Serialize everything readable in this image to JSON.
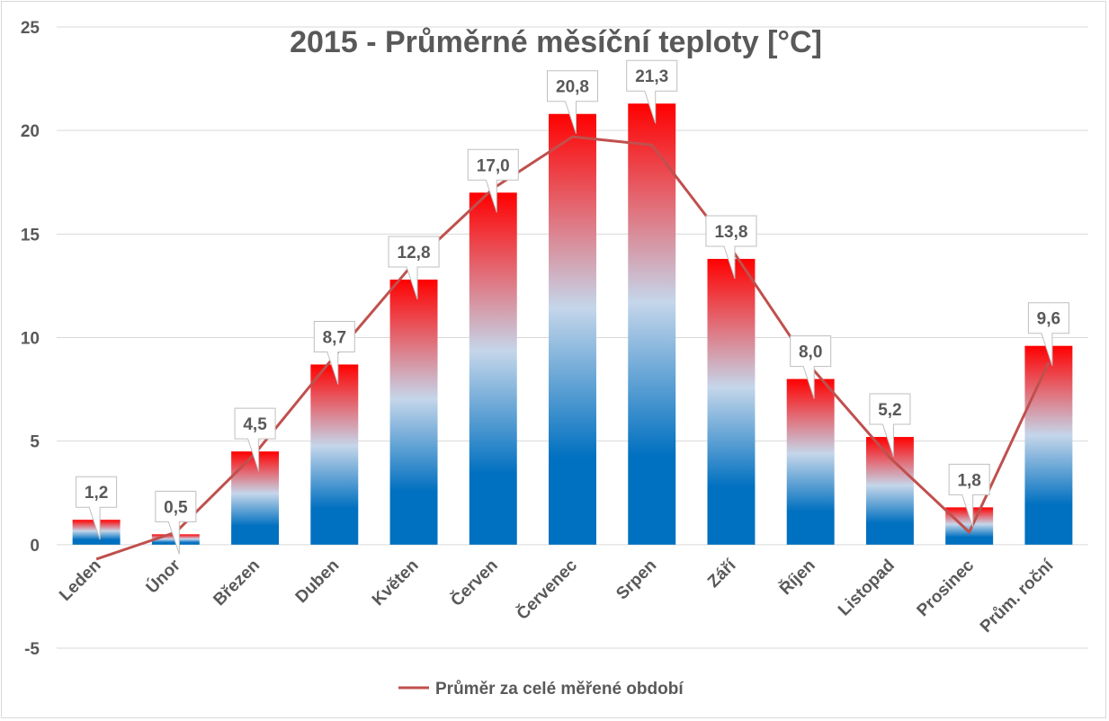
{
  "chart_data": {
    "type": "bar",
    "title": "2015 - Průměrné měsíční teploty [°C]",
    "xlabel": "",
    "ylabel": "",
    "ylim": [
      -5,
      25
    ],
    "yticks": [
      25,
      20,
      15,
      10,
      5,
      0,
      -5
    ],
    "grid": true,
    "categories": [
      "Leden",
      "Únor",
      "Březen",
      "Duben",
      "Květen",
      "Červen",
      "Červenec",
      "Srpen",
      "Září",
      "Říjen",
      "Listopad",
      "Prosinec",
      "Prům. roční"
    ],
    "series": [
      {
        "name": "2015",
        "type": "bar",
        "values": [
          1.2,
          0.5,
          4.5,
          8.7,
          12.8,
          17.0,
          20.8,
          21.3,
          13.8,
          8.0,
          5.2,
          1.8,
          9.6
        ],
        "value_labels": [
          "1,2",
          "0,5",
          "4,5",
          "8,7",
          "12,8",
          "17,0",
          "20,8",
          "21,3",
          "13,8",
          "8,0",
          "5,2",
          "1,8",
          "9,6"
        ]
      },
      {
        "name": "Průměr za celé měřené období",
        "type": "line",
        "color": "#c0504d",
        "values": [
          -0.7,
          0.6,
          4.4,
          9.1,
          13.6,
          17.2,
          19.7,
          19.3,
          14.3,
          8.6,
          4.2,
          0.6,
          8.8
        ]
      }
    ],
    "legend": {
      "position": "bottom",
      "entries": [
        "Průměr za celé měřené období"
      ]
    },
    "colors": {
      "bar_bottom": "#0070c0",
      "bar_mid": "#c5d6ea",
      "bar_top": "#ff0000",
      "line": "#c0504d",
      "grid": "#d9d9d9",
      "text": "#595959"
    }
  }
}
